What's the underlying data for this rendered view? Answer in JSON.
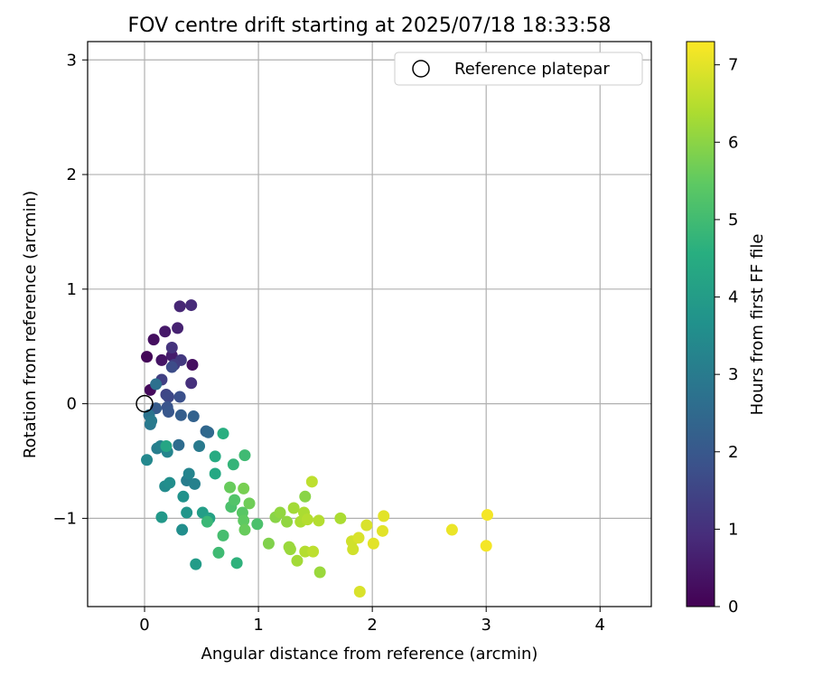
{
  "chart_data": {
    "type": "scatter",
    "title": "FOV centre drift starting at 2025/07/18 18:33:58",
    "xlabel": "Angular distance from reference (arcmin)",
    "ylabel": "Rotation from reference (arcmin)",
    "xlim": [
      -0.5,
      4.45
    ],
    "ylim": [
      -1.77,
      3.16
    ],
    "x_ticks": [
      0,
      1,
      2,
      3,
      4
    ],
    "y_ticks": [
      -1,
      0,
      1,
      2,
      3
    ],
    "grid": true,
    "legend": {
      "position": "upper-right",
      "entries": [
        {
          "label": "Reference platepar",
          "marker": "open-circle",
          "x": 0,
          "y": 0
        }
      ]
    },
    "colorbar": {
      "label": "Hours from first FF file",
      "colormap": "viridis",
      "range": [
        0,
        7.3
      ],
      "ticks": [
        0,
        1,
        2,
        3,
        4,
        5,
        6,
        7
      ]
    },
    "colors": {
      "ref_edge": "#000000",
      "grid": "#b0b0b0"
    },
    "points": [
      {
        "x": 0.02,
        "y": 0.41,
        "h": 0.1
      },
      {
        "x": 0.05,
        "y": 0.12,
        "h": 0.2
      },
      {
        "x": 0.08,
        "y": 0.56,
        "h": 0.3
      },
      {
        "x": 0.15,
        "y": 0.38,
        "h": 0.4
      },
      {
        "x": 0.18,
        "y": 0.63,
        "h": 0.5
      },
      {
        "x": 0.24,
        "y": 0.42,
        "h": 0.6
      },
      {
        "x": 0.29,
        "y": 0.66,
        "h": 0.7
      },
      {
        "x": 0.31,
        "y": 0.85,
        "h": 0.8
      },
      {
        "x": 0.41,
        "y": 0.86,
        "h": 0.9
      },
      {
        "x": 0.42,
        "y": 0.34,
        "h": 0.3
      },
      {
        "x": 0.41,
        "y": 0.18,
        "h": 1.0
      },
      {
        "x": 0.24,
        "y": 0.49,
        "h": 1.1
      },
      {
        "x": 0.32,
        "y": 0.38,
        "h": 1.2
      },
      {
        "x": 0.26,
        "y": 0.34,
        "h": 1.3
      },
      {
        "x": 0.15,
        "y": 0.21,
        "h": 1.4
      },
      {
        "x": 0.19,
        "y": 0.08,
        "h": 1.5
      },
      {
        "x": 0.21,
        "y": 0.06,
        "h": 1.6
      },
      {
        "x": 0.24,
        "y": 0.32,
        "h": 1.7
      },
      {
        "x": 0.31,
        "y": 0.06,
        "h": 1.8
      },
      {
        "x": 0.2,
        "y": -0.03,
        "h": 1.9
      },
      {
        "x": 0.21,
        "y": -0.07,
        "h": 2.0
      },
      {
        "x": 0.1,
        "y": -0.04,
        "h": 2.1
      },
      {
        "x": 0.32,
        "y": -0.1,
        "h": 2.2
      },
      {
        "x": 0.43,
        "y": -0.11,
        "h": 2.3
      },
      {
        "x": 0.54,
        "y": -0.24,
        "h": 2.4
      },
      {
        "x": 0.56,
        "y": -0.25,
        "h": 2.5
      },
      {
        "x": 0.3,
        "y": -0.36,
        "h": 2.6
      },
      {
        "x": 0.1,
        "y": 0.17,
        "h": 2.7
      },
      {
        "x": 0.04,
        "y": -0.1,
        "h": 2.8
      },
      {
        "x": 0.05,
        "y": -0.18,
        "h": 2.9
      },
      {
        "x": 0.06,
        "y": -0.15,
        "h": 3.0
      },
      {
        "x": 0.11,
        "y": -0.39,
        "h": 3.1
      },
      {
        "x": 0.14,
        "y": -0.37,
        "h": 3.2
      },
      {
        "x": 0.2,
        "y": -0.42,
        "h": 3.3
      },
      {
        "x": 0.02,
        "y": -0.49,
        "h": 3.4
      },
      {
        "x": 0.48,
        "y": -0.37,
        "h": 3.0
      },
      {
        "x": 0.37,
        "y": -0.67,
        "h": 3.1
      },
      {
        "x": 0.44,
        "y": -0.7,
        "h": 3.2
      },
      {
        "x": 0.39,
        "y": -0.61,
        "h": 3.3
      },
      {
        "x": 0.18,
        "y": -0.72,
        "h": 3.5
      },
      {
        "x": 0.22,
        "y": -0.69,
        "h": 3.6
      },
      {
        "x": 0.34,
        "y": -0.81,
        "h": 3.7
      },
      {
        "x": 0.37,
        "y": -0.95,
        "h": 3.8
      },
      {
        "x": 0.15,
        "y": -0.99,
        "h": 3.9
      },
      {
        "x": 0.33,
        "y": -1.1,
        "h": 3.6
      },
      {
        "x": 0.45,
        "y": -1.4,
        "h": 4.0
      },
      {
        "x": 0.51,
        "y": -0.95,
        "h": 4.1
      },
      {
        "x": 0.57,
        "y": -1.0,
        "h": 4.2
      },
      {
        "x": 0.19,
        "y": -0.37,
        "h": 4.3
      },
      {
        "x": 0.62,
        "y": -0.61,
        "h": 4.4
      },
      {
        "x": 0.62,
        "y": -0.46,
        "h": 4.5
      },
      {
        "x": 0.69,
        "y": -0.26,
        "h": 4.6
      },
      {
        "x": 0.81,
        "y": -1.39,
        "h": 4.7
      },
      {
        "x": 0.78,
        "y": -0.53,
        "h": 4.8
      },
      {
        "x": 0.55,
        "y": -1.03,
        "h": 4.9
      },
      {
        "x": 0.65,
        "y": -1.3,
        "h": 5.0
      },
      {
        "x": 0.69,
        "y": -1.15,
        "h": 5.1
      },
      {
        "x": 0.76,
        "y": -0.9,
        "h": 5.2
      },
      {
        "x": 0.79,
        "y": -0.84,
        "h": 5.3
      },
      {
        "x": 0.86,
        "y": -0.95,
        "h": 5.4
      },
      {
        "x": 0.88,
        "y": -0.45,
        "h": 5.0
      },
      {
        "x": 0.87,
        "y": -1.02,
        "h": 5.5
      },
      {
        "x": 0.88,
        "y": -1.1,
        "h": 5.6
      },
      {
        "x": 0.92,
        "y": -0.87,
        "h": 5.7
      },
      {
        "x": 0.75,
        "y": -0.73,
        "h": 5.6
      },
      {
        "x": 0.87,
        "y": -0.74,
        "h": 5.8
      },
      {
        "x": 0.99,
        "y": -1.05,
        "h": 5.2
      },
      {
        "x": 1.09,
        "y": -1.22,
        "h": 5.9
      },
      {
        "x": 1.15,
        "y": -0.99,
        "h": 6.0
      },
      {
        "x": 1.19,
        "y": -0.95,
        "h": 6.1
      },
      {
        "x": 1.25,
        "y": -1.03,
        "h": 6.1
      },
      {
        "x": 1.27,
        "y": -1.25,
        "h": 6.2
      },
      {
        "x": 1.28,
        "y": -1.27,
        "h": 6.2
      },
      {
        "x": 1.31,
        "y": -0.91,
        "h": 6.3
      },
      {
        "x": 1.34,
        "y": -1.37,
        "h": 6.3
      },
      {
        "x": 1.37,
        "y": -1.03,
        "h": 6.4
      },
      {
        "x": 1.4,
        "y": -0.95,
        "h": 6.4
      },
      {
        "x": 1.41,
        "y": -0.81,
        "h": 6.0
      },
      {
        "x": 1.41,
        "y": -1.29,
        "h": 6.5
      },
      {
        "x": 1.43,
        "y": -1.01,
        "h": 6.5
      },
      {
        "x": 1.47,
        "y": -0.68,
        "h": 6.6
      },
      {
        "x": 1.48,
        "y": -1.29,
        "h": 6.6
      },
      {
        "x": 1.53,
        "y": -1.02,
        "h": 6.5
      },
      {
        "x": 1.54,
        "y": -1.47,
        "h": 6.2
      },
      {
        "x": 1.72,
        "y": -1.0,
        "h": 6.4
      },
      {
        "x": 1.82,
        "y": -1.2,
        "h": 6.8
      },
      {
        "x": 1.83,
        "y": -1.27,
        "h": 6.8
      },
      {
        "x": 1.88,
        "y": -1.17,
        "h": 6.9
      },
      {
        "x": 1.89,
        "y": -1.64,
        "h": 6.9
      },
      {
        "x": 1.95,
        "y": -1.06,
        "h": 6.9
      },
      {
        "x": 2.01,
        "y": -1.22,
        "h": 7.0
      },
      {
        "x": 2.09,
        "y": -1.11,
        "h": 7.0
      },
      {
        "x": 2.1,
        "y": -0.98,
        "h": 7.0
      },
      {
        "x": 2.7,
        "y": -1.1,
        "h": 7.1
      },
      {
        "x": 3.0,
        "y": -1.24,
        "h": 7.2
      },
      {
        "x": 3.01,
        "y": -0.97,
        "h": 7.2
      }
    ]
  }
}
